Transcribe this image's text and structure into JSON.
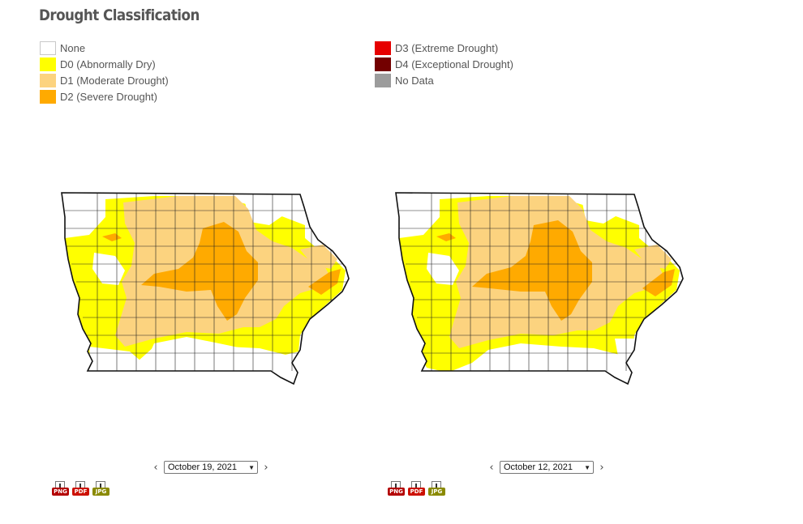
{
  "page": {
    "title": "Drought Classification"
  },
  "legend": {
    "column1": [
      {
        "label": "None",
        "color": "#ffffff"
      },
      {
        "label": "D0 (Abnormally Dry)",
        "color": "#ffff00"
      },
      {
        "label": "D1 (Moderate Drought)",
        "color": "#fcd37f"
      },
      {
        "label": "D2 (Severe Drought)",
        "color": "#ffaa00"
      }
    ],
    "column2": [
      {
        "label": "D3 (Extreme Drought)",
        "color": "#e60000"
      },
      {
        "label": "D4 (Exceptional Drought)",
        "color": "#730000"
      },
      {
        "label": "No Data",
        "color": "#9c9c9c"
      }
    ]
  },
  "maps": [
    {
      "date_label": "October 19, 2021",
      "downloads": [
        {
          "label": "PNG",
          "color": "#b30000",
          "icon": "png-download-icon"
        },
        {
          "label": "PDF",
          "color": "#cc1100",
          "icon": "pdf-download-icon"
        },
        {
          "label": "JPG",
          "color": "#8a8a00",
          "icon": "jpg-download-icon"
        }
      ]
    },
    {
      "date_label": "October 12, 2021",
      "downloads": [
        {
          "label": "PNG",
          "color": "#b30000",
          "icon": "png-download-icon"
        },
        {
          "label": "PDF",
          "color": "#cc1100",
          "icon": "pdf-download-icon"
        },
        {
          "label": "JPG",
          "color": "#8a8a00",
          "icon": "jpg-download-icon"
        }
      ]
    }
  ],
  "icons": {
    "prev": "chevron-left-icon",
    "next": "chevron-right-icon"
  }
}
